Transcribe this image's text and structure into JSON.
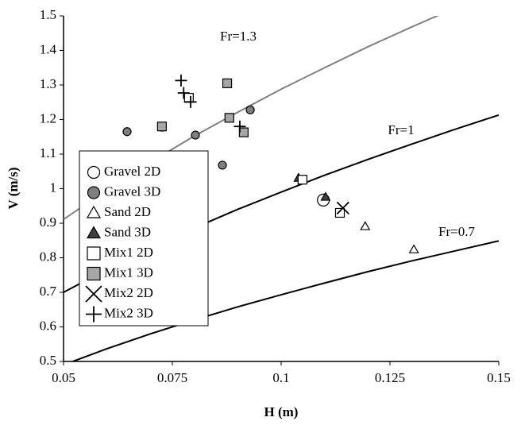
{
  "chart_data": {
    "type": "scatter",
    "xlabel": "H (m)",
    "ylabel": "V (m/s)",
    "xlim": [
      0.05,
      0.15
    ],
    "ylim": [
      0.5,
      1.5
    ],
    "xticks": [
      0.05,
      0.075,
      0.1,
      0.125,
      0.15
    ],
    "yticks": [
      0.5,
      0.6,
      0.7,
      0.8,
      0.9,
      1,
      1.1,
      1.2,
      1.3,
      1.4,
      1.5
    ],
    "legend": "left",
    "series": [
      {
        "name": "Gravel 2D",
        "marker": "circle",
        "color": "#ffffff",
        "x": [
          0.1097
        ],
        "values": [
          0.967
        ]
      },
      {
        "name": "Gravel 3D",
        "marker": "circle",
        "color": "#7f7f7f",
        "x": [
          0.0646,
          0.0803,
          0.0929,
          0.0865,
          0.0726
        ],
        "values": [
          1.165,
          1.155,
          1.228,
          1.068,
          1.178
        ]
      },
      {
        "name": "Sand 2D",
        "marker": "triangle",
        "color": "#ffffff",
        "x": [
          0.1193,
          0.1305
        ],
        "values": [
          0.891,
          0.824
        ]
      },
      {
        "name": "Sand 3D",
        "marker": "triangle",
        "color": "#404040",
        "x": [
          0.104,
          0.1102
        ],
        "values": [
          1.031,
          0.976
        ]
      },
      {
        "name": "Mix1 2D",
        "marker": "square",
        "color": "#ffffff",
        "x": [
          0.0788,
          0.1049,
          0.1135
        ],
        "values": [
          1.263,
          1.026,
          0.93
        ]
      },
      {
        "name": "Mix1 3D",
        "marker": "square",
        "color": "#a6a6a6",
        "x": [
          0.0726,
          0.0876,
          0.0881,
          0.0914
        ],
        "values": [
          1.18,
          1.305,
          1.205,
          1.163
        ]
      },
      {
        "name": "Mix2 2D",
        "marker": "x",
        "color": "#000000",
        "x": [
          0.1142
        ],
        "values": [
          0.944
        ]
      },
      {
        "name": "Mix2 3D",
        "marker": "plus",
        "color": "#000000",
        "x": [
          0.077,
          0.0776,
          0.0792,
          0.0905
        ],
        "values": [
          1.313,
          1.277,
          1.251,
          1.18
        ]
      }
    ],
    "curves": [
      {
        "label": "Fr=1.3",
        "color": "#808080",
        "x": [
          0.05,
          0.06,
          0.07,
          0.08,
          0.09,
          0.1,
          0.11,
          0.12,
          0.13,
          0.14
        ],
        "values": [
          0.911,
          0.997,
          1.077,
          1.152,
          1.221,
          1.288,
          1.35,
          1.411,
          1.468,
          1.523
        ]
      },
      {
        "label": "Fr=1",
        "color": "#000000",
        "x": [
          0.05,
          0.06,
          0.07,
          0.08,
          0.09,
          0.1,
          0.11,
          0.12,
          0.13,
          0.14,
          0.15
        ],
        "values": [
          0.7,
          0.767,
          0.829,
          0.886,
          0.94,
          0.99,
          1.039,
          1.085,
          1.129,
          1.172,
          1.213
        ]
      },
      {
        "label": "Fr=0.7",
        "color": "#000000",
        "x": [
          0.05,
          0.06,
          0.07,
          0.08,
          0.09,
          0.1,
          0.11,
          0.12,
          0.13,
          0.14,
          0.15
        ],
        "values": [
          0.49,
          0.537,
          0.58,
          0.62,
          0.658,
          0.693,
          0.727,
          0.76,
          0.791,
          0.82,
          0.849
        ]
      }
    ]
  }
}
